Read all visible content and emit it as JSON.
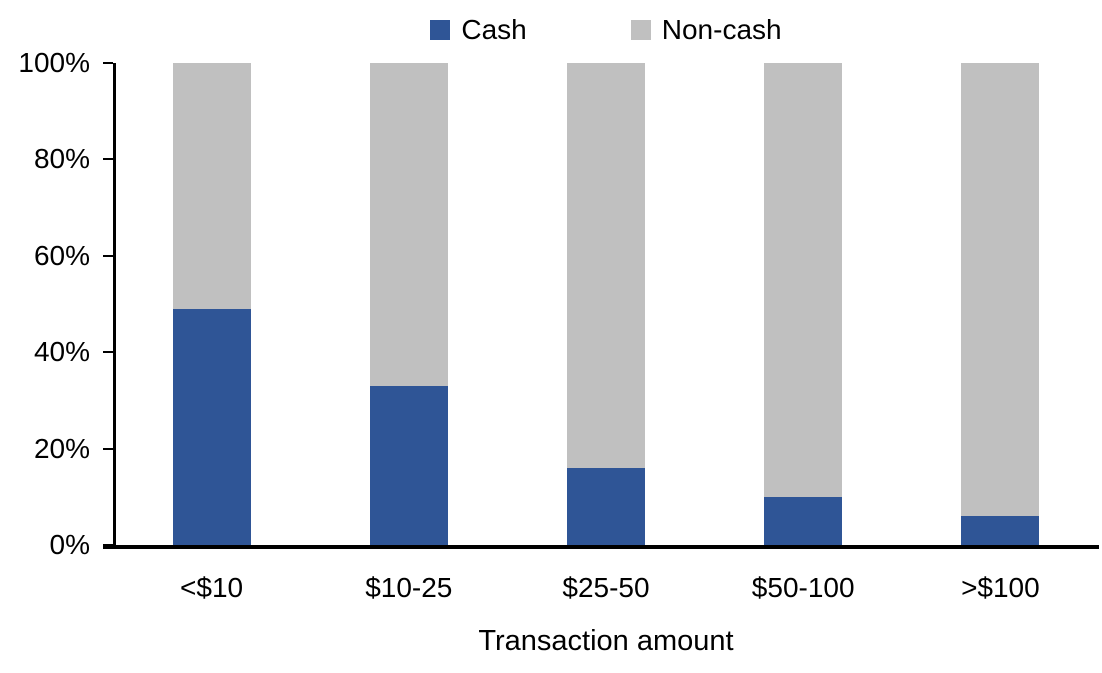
{
  "chart_data": {
    "type": "bar",
    "stacked": true,
    "orientation": "vertical",
    "title": "",
    "xlabel": "Transaction amount",
    "ylabel": "",
    "categories": [
      "<$10",
      "$10-25",
      "$25-50",
      "$50-100",
      ">$100"
    ],
    "series": [
      {
        "name": "Cash",
        "color": "#2F5596",
        "values": [
          49,
          33,
          16,
          10,
          6
        ]
      },
      {
        "name": "Non-cash",
        "color": "#C0C0C0",
        "values": [
          51,
          67,
          84,
          90,
          94
        ]
      }
    ],
    "ylim": [
      0,
      100
    ],
    "ytick_step": 20,
    "yticks": [
      "0%",
      "20%",
      "40%",
      "60%",
      "80%",
      "100%"
    ],
    "legend_position": "top",
    "grid": false,
    "axis_color": "#000000"
  }
}
